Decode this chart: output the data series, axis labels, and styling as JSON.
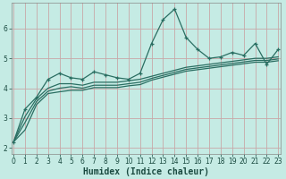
{
  "xlabel": "Humidex (Indice chaleur)",
  "bg_color": "#c5ebe4",
  "grid_color": "#c8a8a8",
  "line_color": "#2a6e62",
  "x_min": 0,
  "x_max": 23,
  "y_min": 1.8,
  "y_max": 6.85,
  "line1": {
    "x": [
      0,
      1,
      2,
      3,
      4,
      5,
      6,
      7,
      8,
      9,
      10,
      11,
      12,
      13,
      14,
      15,
      16,
      17,
      18,
      19,
      20,
      21,
      22,
      23
    ],
    "y": [
      2.2,
      3.3,
      3.7,
      4.3,
      4.5,
      4.35,
      4.3,
      4.55,
      4.45,
      4.35,
      4.3,
      4.5,
      5.5,
      6.3,
      6.65,
      5.7,
      5.3,
      5.0,
      5.05,
      5.2,
      5.1,
      5.5,
      4.8,
      5.3
    ]
  },
  "line2": {
    "x": [
      0,
      1,
      2,
      3,
      4,
      5,
      6,
      7,
      8,
      9,
      10,
      11,
      12,
      13,
      14,
      15,
      16,
      17,
      18,
      19,
      20,
      21,
      22,
      23
    ],
    "y": [
      2.2,
      3.05,
      3.65,
      4.0,
      4.15,
      4.15,
      4.1,
      4.2,
      4.2,
      4.2,
      4.25,
      4.3,
      4.4,
      4.5,
      4.6,
      4.7,
      4.75,
      4.8,
      4.85,
      4.9,
      4.95,
      5.0,
      5.0,
      5.05
    ]
  },
  "line3": {
    "x": [
      0,
      1,
      2,
      3,
      4,
      5,
      6,
      7,
      8,
      9,
      10,
      11,
      12,
      13,
      14,
      15,
      16,
      17,
      18,
      19,
      20,
      21,
      22,
      23
    ],
    "y": [
      2.2,
      2.85,
      3.55,
      3.9,
      4.0,
      4.05,
      4.0,
      4.1,
      4.1,
      4.1,
      4.15,
      4.2,
      4.33,
      4.43,
      4.53,
      4.63,
      4.68,
      4.73,
      4.78,
      4.83,
      4.88,
      4.93,
      4.93,
      4.98
    ]
  },
  "line4": {
    "x": [
      0,
      1,
      2,
      3,
      4,
      5,
      6,
      7,
      8,
      9,
      10,
      11,
      12,
      13,
      14,
      15,
      16,
      17,
      18,
      19,
      20,
      21,
      22,
      23
    ],
    "y": [
      2.2,
      2.6,
      3.45,
      3.82,
      3.88,
      3.93,
      3.93,
      4.02,
      4.02,
      4.02,
      4.08,
      4.12,
      4.27,
      4.37,
      4.47,
      4.57,
      4.62,
      4.67,
      4.72,
      4.77,
      4.82,
      4.87,
      4.87,
      4.92
    ]
  },
  "yticks": [
    2,
    3,
    4,
    5,
    6
  ],
  "xticks": [
    0,
    1,
    2,
    3,
    4,
    5,
    6,
    7,
    8,
    9,
    10,
    11,
    12,
    13,
    14,
    15,
    16,
    17,
    18,
    19,
    20,
    21,
    22,
    23
  ],
  "xlabel_fontsize": 7,
  "tick_fontsize": 5.5
}
